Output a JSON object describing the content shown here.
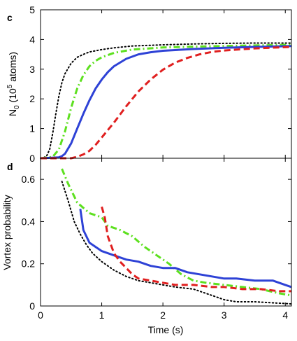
{
  "chart_data": [
    {
      "panel": "c",
      "type": "line",
      "ylabel": {
        "prefix": "N",
        "sub": "0",
        "mid": " (10",
        "sup": "5",
        "suffix": " atoms)"
      },
      "xlim": [
        0,
        4.1
      ],
      "ylim": [
        0,
        5
      ],
      "xticks": [
        0,
        1,
        2,
        3,
        4
      ],
      "yticks": [
        0,
        1,
        2,
        3,
        4,
        5
      ],
      "series": [
        {
          "style": "dotted",
          "color": "#000000",
          "x": [
            0,
            0.05,
            0.1,
            0.15,
            0.2,
            0.25,
            0.3,
            0.35,
            0.4,
            0.5,
            0.6,
            0.7,
            0.8,
            1.0,
            1.2,
            1.5,
            2.0,
            2.5,
            3.0,
            3.5,
            4.1
          ],
          "y": [
            0,
            0.02,
            0.08,
            0.3,
            0.85,
            1.5,
            2.1,
            2.55,
            2.85,
            3.2,
            3.4,
            3.5,
            3.58,
            3.66,
            3.72,
            3.78,
            3.82,
            3.85,
            3.87,
            3.88,
            3.88
          ]
        },
        {
          "style": "dashdot",
          "color": "#5de01f",
          "x": [
            0,
            0.2,
            0.3,
            0.4,
            0.5,
            0.6,
            0.7,
            0.8,
            0.9,
            1.0,
            1.2,
            1.5,
            2.0,
            2.5,
            3.0,
            3.5,
            4.1
          ],
          "y": [
            0,
            0.05,
            0.3,
            0.9,
            1.7,
            2.35,
            2.8,
            3.1,
            3.28,
            3.4,
            3.55,
            3.66,
            3.73,
            3.76,
            3.78,
            3.8,
            3.82
          ]
        },
        {
          "style": "solid",
          "color": "#2e42d6",
          "x": [
            0,
            0.3,
            0.35,
            0.4,
            0.5,
            0.6,
            0.7,
            0.8,
            0.9,
            1.0,
            1.1,
            1.2,
            1.4,
            1.6,
            1.8,
            2.0,
            2.5,
            3.0,
            3.5,
            4.1
          ],
          "y": [
            0,
            0.03,
            0.07,
            0.15,
            0.5,
            1.0,
            1.5,
            1.95,
            2.35,
            2.65,
            2.9,
            3.1,
            3.35,
            3.5,
            3.57,
            3.62,
            3.68,
            3.72,
            3.75,
            3.78
          ]
        },
        {
          "style": "dashed",
          "color": "#e01f1f",
          "x": [
            0,
            0.5,
            0.6,
            0.7,
            0.8,
            0.9,
            1.0,
            1.2,
            1.4,
            1.6,
            1.8,
            2.0,
            2.2,
            2.4,
            2.6,
            2.8,
            3.0,
            3.5,
            4.1
          ],
          "y": [
            0,
            0.0,
            0.05,
            0.13,
            0.25,
            0.45,
            0.7,
            1.2,
            1.75,
            2.25,
            2.65,
            2.98,
            3.22,
            3.38,
            3.5,
            3.58,
            3.63,
            3.7,
            3.75
          ]
        }
      ]
    },
    {
      "panel": "d",
      "type": "line",
      "xlabel": "Time (s)",
      "ylabel": "Vortex probability",
      "xlim": [
        0,
        4.1
      ],
      "ylim": [
        0,
        0.7
      ],
      "xticks": [
        0,
        1,
        2,
        3,
        4
      ],
      "yticks": [
        0,
        0.2,
        0.4,
        0.6
      ],
      "ytick_labels": [
        "0",
        "0.2",
        "0.4",
        "0.6"
      ],
      "series": [
        {
          "style": "dotted",
          "color": "#000000",
          "x": [
            0.35,
            0.45,
            0.55,
            0.65,
            0.75,
            0.85,
            1.0,
            1.2,
            1.4,
            1.6,
            1.8,
            2.0,
            2.2,
            2.5,
            2.8,
            3.0,
            3.2,
            3.5,
            3.8,
            4.1
          ],
          "y": [
            0.59,
            0.5,
            0.4,
            0.34,
            0.29,
            0.25,
            0.21,
            0.17,
            0.14,
            0.12,
            0.11,
            0.1,
            0.09,
            0.08,
            0.05,
            0.03,
            0.02,
            0.02,
            0.015,
            0.01
          ]
        },
        {
          "style": "dashdot",
          "color": "#5de01f",
          "x": [
            0.35,
            0.45,
            0.6,
            0.8,
            1.0,
            1.1,
            1.3,
            1.5,
            1.7,
            1.9,
            2.1,
            2.3,
            2.5,
            2.7,
            3.0,
            3.3,
            3.6,
            3.9,
            4.1
          ],
          "y": [
            0.65,
            0.58,
            0.49,
            0.44,
            0.42,
            0.38,
            0.36,
            0.33,
            0.28,
            0.24,
            0.2,
            0.15,
            0.12,
            0.11,
            0.1,
            0.09,
            0.08,
            0.06,
            0.05
          ]
        },
        {
          "style": "solid",
          "color": "#2e42d6",
          "x": [
            0.65,
            0.7,
            0.8,
            0.9,
            1.0,
            1.2,
            1.4,
            1.6,
            1.8,
            2.0,
            2.2,
            2.4,
            2.6,
            2.8,
            3.0,
            3.2,
            3.5,
            3.8,
            4.0,
            4.1
          ],
          "y": [
            0.46,
            0.36,
            0.3,
            0.28,
            0.26,
            0.24,
            0.22,
            0.21,
            0.19,
            0.18,
            0.18,
            0.16,
            0.15,
            0.14,
            0.13,
            0.13,
            0.12,
            0.12,
            0.1,
            0.09
          ]
        },
        {
          "style": "dashed",
          "color": "#e01f1f",
          "x": [
            1.0,
            1.05,
            1.1,
            1.2,
            1.3,
            1.4,
            1.5,
            1.6,
            1.8,
            2.0,
            2.2,
            2.5,
            2.8,
            3.0,
            3.3,
            3.6,
            3.9,
            4.1
          ],
          "y": [
            0.47,
            0.42,
            0.33,
            0.25,
            0.21,
            0.18,
            0.15,
            0.13,
            0.12,
            0.11,
            0.1,
            0.1,
            0.09,
            0.09,
            0.08,
            0.08,
            0.07,
            0.07
          ]
        }
      ]
    }
  ]
}
